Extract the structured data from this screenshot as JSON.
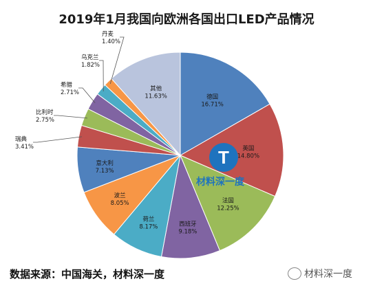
{
  "chart_data": {
    "type": "pie",
    "title": "2019年1月我国向欧洲各国出口LED产品情况",
    "start_angle_deg": 0,
    "direction": "clockwise",
    "slices": [
      {
        "label": "德国",
        "value": 16.71,
        "value_label": "16.71%",
        "color": "#4f81bd"
      },
      {
        "label": "英国",
        "value": 14.8,
        "value_label": "14.80%",
        "color": "#c0504d"
      },
      {
        "label": "法国",
        "value": 12.25,
        "value_label": "12.25%",
        "color": "#9bbb59"
      },
      {
        "label": "西班牙",
        "value": 9.18,
        "value_label": "9.18%",
        "color": "#8064a2"
      },
      {
        "label": "荷兰",
        "value": 8.17,
        "value_label": "8.17%",
        "color": "#4bacc6"
      },
      {
        "label": "波兰",
        "value": 8.05,
        "value_label": "8.05%",
        "color": "#f79646"
      },
      {
        "label": "意大利",
        "value": 7.13,
        "value_label": "7.13%",
        "color": "#4f81bd"
      },
      {
        "label": "瑞典",
        "value": 3.41,
        "value_label": "3.41%",
        "color": "#c0504d"
      },
      {
        "label": "比利时",
        "value": 2.75,
        "value_label": "2.75%",
        "color": "#9bbb59"
      },
      {
        "label": "希腊",
        "value": 2.71,
        "value_label": "2.71%",
        "color": "#8064a2"
      },
      {
        "label": "乌克兰",
        "value": 1.82,
        "value_label": "1.82%",
        "color": "#4bacc6"
      },
      {
        "label": "丹麦",
        "value": 1.4,
        "value_label": "1.40%",
        "color": "#f79646"
      },
      {
        "label": "其他",
        "value": 11.63,
        "value_label": "11.63%",
        "color": "#b9c4dd"
      }
    ]
  },
  "source_text": "数据来源：中国海关，材料深一度",
  "watermark_text": "材料深一度",
  "logo": {
    "letter": "T",
    "text": "材料深一度",
    "color": "#1e73be"
  }
}
